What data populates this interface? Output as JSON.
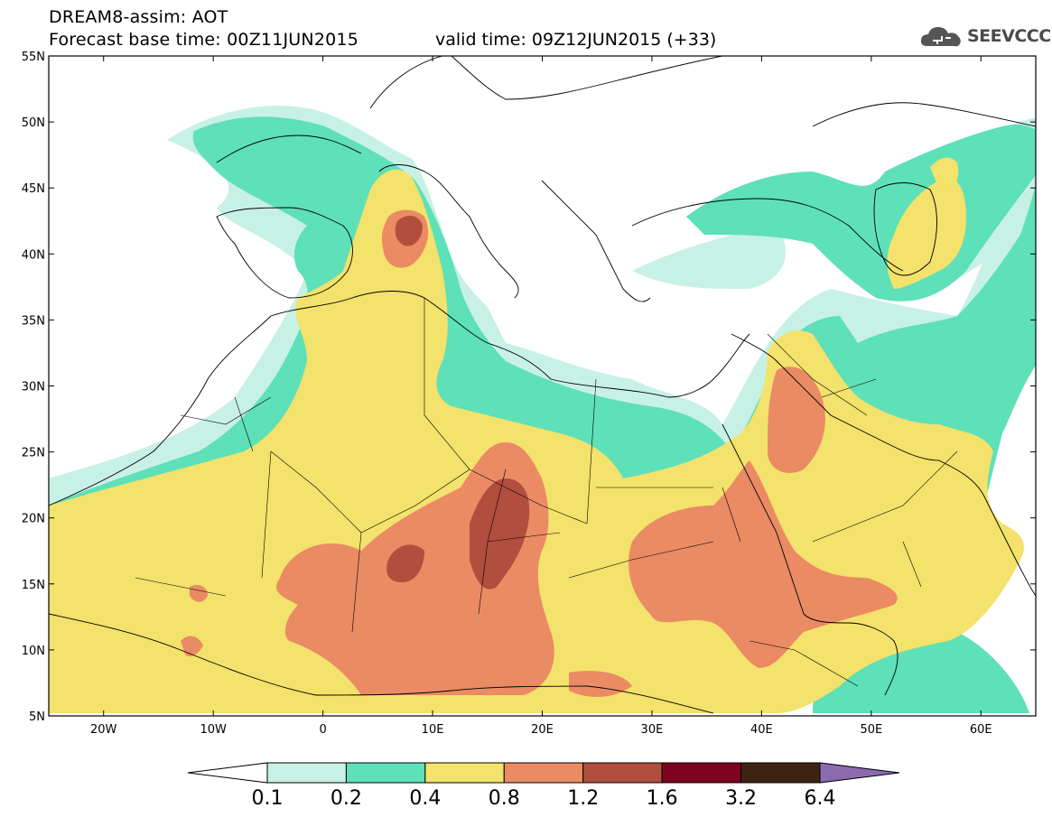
{
  "header": {
    "title_line1": "DREAM8-assim: AOT",
    "title_line2": "Forecast base time: 00Z11JUN2015",
    "valid_time": "valid time: 09Z12JUN2015 (+33)",
    "logo_text": "SEEVCCC"
  },
  "axes": {
    "y_ticks": [
      "55N",
      "50N",
      "45N",
      "40N",
      "35N",
      "30N",
      "25N",
      "20N",
      "15N",
      "10N",
      "5N"
    ],
    "y_values": [
      55,
      50,
      45,
      40,
      35,
      30,
      25,
      20,
      15,
      10,
      5
    ],
    "x_ticks": [
      "20W",
      "10W",
      "0",
      "10E",
      "20E",
      "30E",
      "40E",
      "50E",
      "60E"
    ],
    "x_values": [
      -20,
      -10,
      0,
      10,
      20,
      30,
      40,
      50,
      60
    ],
    "lon_range": [
      -25,
      65
    ],
    "lat_range": [
      5,
      55
    ]
  },
  "colorbar": {
    "labels": [
      "0.1",
      "0.2",
      "0.4",
      "0.8",
      "1.2",
      "1.6",
      "3.2",
      "6.4"
    ],
    "colors": [
      "#ffffff",
      "#c8f1e6",
      "#5ee0b8",
      "#f3e26b",
      "#ea8b64",
      "#b24e3e",
      "#7e0321",
      "#3e2313",
      "#8c6ab0"
    ]
  },
  "legend_colors": {
    "aot_01_02": "#c8f1e6",
    "aot_02_04": "#5ee0b8",
    "aot_04_08": "#f3e26b",
    "aot_08_12": "#ea8b64",
    "aot_12_16": "#b24e3e"
  }
}
